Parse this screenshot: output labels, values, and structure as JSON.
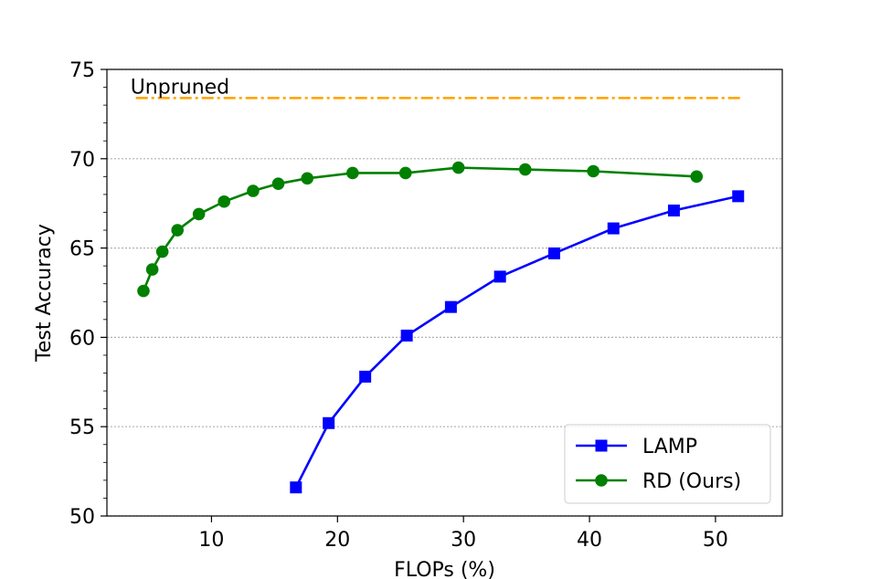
{
  "chart_data": {
    "type": "line",
    "title": "",
    "xlabel": "FLOPs (%)",
    "ylabel": "Test Accuracy",
    "xlim": [
      1.7,
      55.3
    ],
    "ylim": [
      50,
      75
    ],
    "xticks": [
      10,
      20,
      30,
      40,
      50
    ],
    "yticks": [
      50,
      55,
      60,
      65,
      70,
      75
    ],
    "xtick_labels": [
      "10",
      "20",
      "30",
      "40",
      "50"
    ],
    "ytick_labels": [
      "50",
      "55",
      "60",
      "65",
      "70",
      "75"
    ],
    "grid": "horizontal dotted at major y ticks",
    "legend_position": "lower-right",
    "reference_line": {
      "label": "Unpruned",
      "y": 73.4,
      "x_range": [
        4.0,
        52.0
      ],
      "color": "#ffa500",
      "style": "dash-dot"
    },
    "series": [
      {
        "name": "LAMP",
        "color": "#0000ff",
        "marker": "square",
        "x": [
          16.7,
          19.3,
          22.2,
          25.5,
          29.0,
          32.9,
          37.2,
          41.9,
          46.7,
          51.8
        ],
        "y": [
          51.6,
          55.2,
          57.8,
          60.1,
          61.7,
          63.4,
          64.7,
          66.1,
          67.1,
          67.9
        ]
      },
      {
        "name": "RD (Ours)",
        "color": "#008000",
        "marker": "circle",
        "x": [
          4.6,
          5.3,
          6.1,
          7.3,
          9.0,
          11.0,
          13.3,
          15.3,
          17.6,
          21.2,
          25.4,
          29.6,
          34.9,
          40.3,
          48.5
        ],
        "y": [
          62.6,
          63.8,
          64.8,
          66.0,
          66.9,
          67.6,
          68.2,
          68.6,
          68.9,
          69.2,
          69.2,
          69.5,
          69.4,
          69.3,
          69.0
        ]
      }
    ]
  }
}
